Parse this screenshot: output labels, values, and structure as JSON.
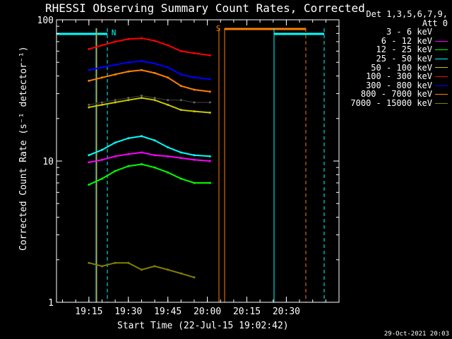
{
  "chart_data": {
    "type": "line",
    "title": "RHESSI Observing Summary Count Rates, Corrected",
    "xlabel": "Start Time (22-Jul-15 19:02:42)",
    "ylabel": "Corrected Count Rate (s⁻¹ detector⁻¹)",
    "y_scale": "log",
    "ylim": [
      1,
      100
    ],
    "xlim": [
      "19:02:42",
      "20:50:00"
    ],
    "x_ticks": [
      "19:15",
      "19:30",
      "19:45",
      "20:00",
      "20:15",
      "20:30"
    ],
    "y_ticks": [
      "1",
      "10",
      "100"
    ],
    "legend_header": [
      "Det 1,3,5,6,7,9,",
      "Att 0"
    ],
    "legend_position": "top-right, outside plot",
    "series": [
      {
        "name": "3 - 6 keV",
        "color": "#000000",
        "x": [
          "19:15",
          "19:20",
          "19:25",
          "19:30",
          "19:35",
          "19:40",
          "19:45",
          "19:50",
          "19:55",
          "20:01"
        ],
        "values": [
          25,
          26,
          27,
          28,
          29,
          28,
          27,
          27,
          26,
          26
        ]
      },
      {
        "name": "6 - 12 keV",
        "color": "#ff00ff",
        "x": [
          "19:15",
          "19:20",
          "19:25",
          "19:30",
          "19:35",
          "19:40",
          "19:45",
          "19:50",
          "19:55",
          "20:01"
        ],
        "values": [
          9.8,
          10.2,
          10.8,
          11.2,
          11.5,
          11,
          10.8,
          10.5,
          10.2,
          10
        ]
      },
      {
        "name": "12 - 25 keV",
        "color": "#00ff00",
        "x": [
          "19:15",
          "19:20",
          "19:25",
          "19:30",
          "19:35",
          "19:40",
          "19:45",
          "19:50",
          "19:55",
          "20:01"
        ],
        "values": [
          6.8,
          7.5,
          8.5,
          9.2,
          9.5,
          9.0,
          8.3,
          7.5,
          7.0,
          7.0
        ]
      },
      {
        "name": "25 - 50 keV",
        "color": "#00ffff",
        "x": [
          "19:15",
          "19:20",
          "19:25",
          "19:30",
          "19:35",
          "19:40",
          "19:45",
          "19:50",
          "19:55",
          "20:01"
        ],
        "values": [
          11,
          12,
          13.5,
          14.5,
          15,
          14,
          12.5,
          11.5,
          11,
          10.8
        ]
      },
      {
        "name": "50 - 100 keV",
        "color": "#c8c800",
        "x": [
          "19:15",
          "19:20",
          "19:25",
          "19:30",
          "19:35",
          "19:40",
          "19:45",
          "19:50",
          "19:55",
          "20:01"
        ],
        "values": [
          24,
          25,
          26,
          27,
          28,
          27,
          25,
          23,
          22.5,
          22
        ]
      },
      {
        "name": "100 - 300 keV",
        "color": "#ff0000",
        "x": [
          "19:15",
          "19:20",
          "19:25",
          "19:30",
          "19:35",
          "19:40",
          "19:45",
          "19:50",
          "19:55",
          "20:01"
        ],
        "values": [
          62,
          66,
          70,
          73,
          74,
          71,
          66,
          60,
          58,
          56
        ]
      },
      {
        "name": "300 - 800 keV",
        "color": "#0000ff",
        "x": [
          "19:15",
          "19:20",
          "19:25",
          "19:30",
          "19:35",
          "19:40",
          "19:45",
          "19:50",
          "19:55",
          "20:01"
        ],
        "values": [
          44,
          46,
          48,
          50,
          51,
          49,
          46,
          41,
          39,
          38
        ]
      },
      {
        "name": "800 - 7000 keV",
        "color": "#ff8000",
        "x": [
          "19:15",
          "19:20",
          "19:25",
          "19:30",
          "19:35",
          "19:40",
          "19:45",
          "19:50",
          "19:55",
          "20:01"
        ],
        "values": [
          37,
          39,
          41,
          43,
          44,
          42,
          39,
          34,
          32,
          31
        ]
      },
      {
        "name": "7000 - 15000 keV",
        "color": "#808000",
        "x": [
          "19:15",
          "19:20",
          "19:25",
          "19:30",
          "19:35",
          "19:40",
          "19:45",
          "19:50",
          "19:55"
        ],
        "values": [
          1.9,
          1.8,
          1.9,
          1.9,
          1.7,
          1.8,
          1.7,
          1.6,
          1.5
        ]
      }
    ],
    "flags": [
      {
        "label": "N",
        "color": "#00ffff"
      },
      {
        "label": "S",
        "color": "#ff8000"
      }
    ],
    "grid": false
  },
  "footer": "29-Oct-2021 20:03"
}
